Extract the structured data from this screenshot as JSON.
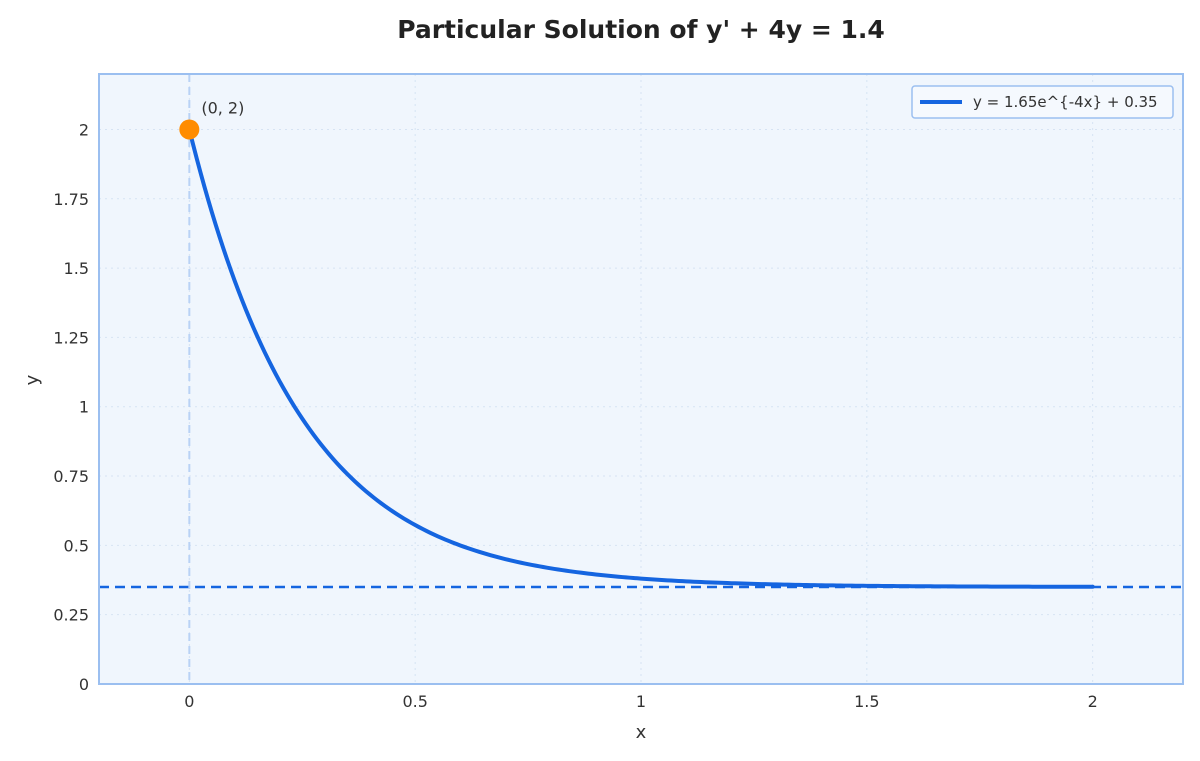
{
  "chart_data": {
    "type": "line",
    "title": "Particular Solution of y' + 4y = 1.4",
    "xlabel": "x",
    "ylabel": "y",
    "xlim": [
      -0.2,
      2.2
    ],
    "ylim": [
      0,
      2.2
    ],
    "x_ticks": [
      0,
      0.5,
      1,
      1.5,
      2
    ],
    "x_tick_labels": [
      "0",
      "0.5",
      "1",
      "1.5",
      "2"
    ],
    "y_ticks": [
      0,
      0.25,
      0.5,
      0.75,
      1,
      1.25,
      1.5,
      1.75,
      2
    ],
    "y_tick_labels": [
      "0",
      "0.25",
      "0.5",
      "0.75",
      "1",
      "1.25",
      "1.5",
      "1.75",
      "2"
    ],
    "grid": true,
    "legend_position": "top-right",
    "series": [
      {
        "name": "y = 1.65e^{-4x} + 0.35",
        "x_range": [
          0,
          2
        ],
        "coefficient": 1.65,
        "rate": -4,
        "offset": 0.35,
        "color": "#1565e0"
      }
    ],
    "reference_lines": [
      {
        "orientation": "horizontal",
        "y": 0.35,
        "style": "dashed",
        "color": "#1565e0"
      },
      {
        "orientation": "vertical",
        "x": 0,
        "style": "dashed",
        "color": "#b9d2f5"
      }
    ],
    "points": [
      {
        "x": 0,
        "y": 2,
        "label": "(0, 2)",
        "color": "#ff8c00"
      }
    ],
    "colors": {
      "plot_background": "#f0f6fd",
      "frame": "#9bbff0",
      "grid": "#d6e3f3"
    }
  }
}
